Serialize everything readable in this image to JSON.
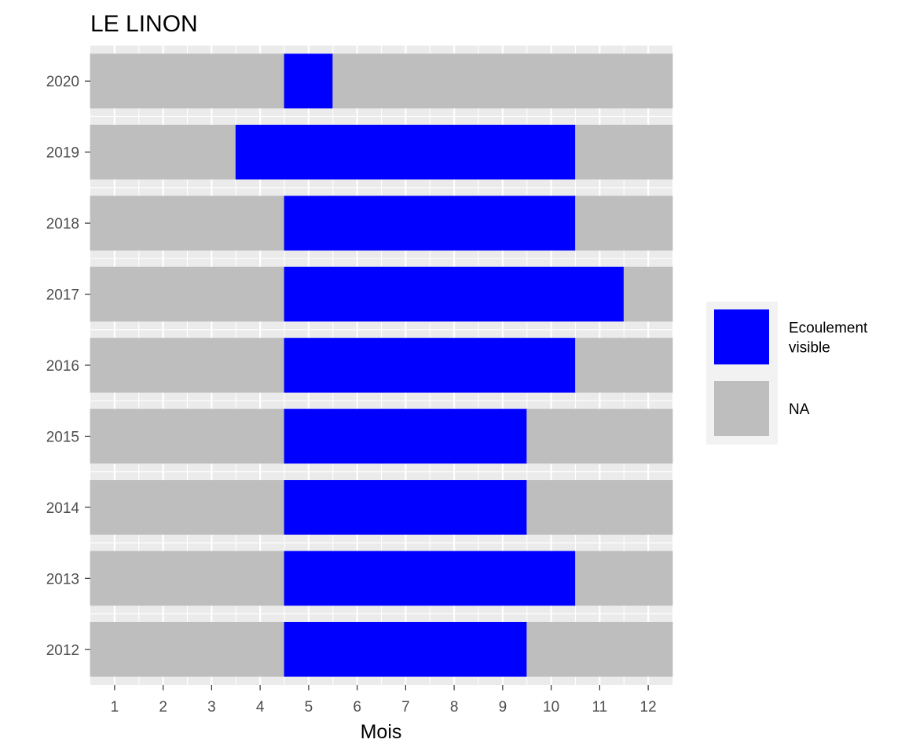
{
  "chart_data": {
    "type": "heatmap",
    "title": "LE LINON",
    "xlabel": "Mois",
    "ylabel": "",
    "x": [
      1,
      2,
      3,
      4,
      5,
      6,
      7,
      8,
      9,
      10,
      11,
      12
    ],
    "x_tick_labels": [
      "1",
      "2",
      "3",
      "4",
      "5",
      "6",
      "7",
      "8",
      "9",
      "10",
      "11",
      "12"
    ],
    "y": [
      "2012",
      "2013",
      "2014",
      "2015",
      "2016",
      "2017",
      "2018",
      "2019",
      "2020"
    ],
    "xlim": [
      0.5,
      12.5
    ],
    "grid": true,
    "legend": {
      "placement": "right",
      "entries": [
        {
          "label": "Ecoulement visible",
          "label_lines": [
            "Ecoulement",
            "visible"
          ],
          "color": "#0000ff"
        },
        {
          "label": "NA",
          "label_lines": [
            "NA"
          ],
          "color": "#bebebe"
        }
      ]
    },
    "colors": {
      "visible": "#0000ff",
      "na": "#bebebe",
      "panel": "#ebebeb",
      "grid": "#ffffff",
      "legend_bg": "#f2f2f2"
    },
    "rows": [
      {
        "year": "2020",
        "visible_months": [
          5
        ]
      },
      {
        "year": "2019",
        "visible_months": [
          4,
          5,
          6,
          7,
          8,
          9,
          10
        ]
      },
      {
        "year": "2018",
        "visible_months": [
          5,
          6,
          7,
          8,
          9,
          10
        ]
      },
      {
        "year": "2017",
        "visible_months": [
          5,
          6,
          7,
          8,
          9,
          10,
          11
        ]
      },
      {
        "year": "2016",
        "visible_months": [
          5,
          6,
          7,
          8,
          9,
          10
        ]
      },
      {
        "year": "2015",
        "visible_months": [
          5,
          6,
          7,
          8,
          9
        ]
      },
      {
        "year": "2014",
        "visible_months": [
          5,
          6,
          7,
          8,
          9
        ]
      },
      {
        "year": "2013",
        "visible_months": [
          5,
          6,
          7,
          8,
          9,
          10
        ]
      },
      {
        "year": "2012",
        "visible_months": [
          5,
          6,
          7,
          8,
          9
        ]
      }
    ]
  }
}
